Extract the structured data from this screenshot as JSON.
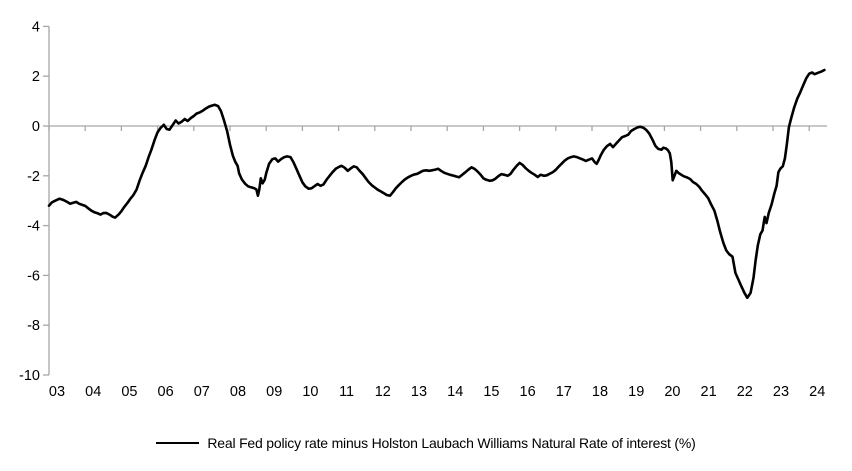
{
  "chart": {
    "legend_label": "Real Fed policy rate minus Holston Laubach Williams Natural Rate of interest (%)"
  },
  "chart_data": {
    "type": "line",
    "title": "",
    "xlabel": "",
    "ylabel": "",
    "ylim": [
      -10,
      4
    ],
    "y_ticks": [
      4,
      2,
      0,
      -2,
      -4,
      -6,
      -8,
      -10
    ],
    "x_tick_labels": [
      "03",
      "04",
      "05",
      "06",
      "07",
      "08",
      "09",
      "10",
      "11",
      "12",
      "13",
      "14",
      "15",
      "16",
      "17",
      "18",
      "19",
      "20",
      "21",
      "22",
      "23",
      "24"
    ],
    "x_range_decimal_years": [
      2003.0,
      2024.5
    ],
    "grid": "zero-baseline-only",
    "legend_position": "bottom-center",
    "axis_color": "#A6A6A6",
    "line_color": "#000000",
    "series": [
      {
        "name": "Real Fed policy rate minus Holston Laubach Williams Natural Rate of interest (%)",
        "x_unit": "decimal-year",
        "points": [
          [
            2003.0,
            -3.2
          ],
          [
            2003.08,
            -3.07
          ],
          [
            2003.17,
            -3.0
          ],
          [
            2003.29,
            -2.92
          ],
          [
            2003.38,
            -2.96
          ],
          [
            2003.5,
            -3.05
          ],
          [
            2003.58,
            -3.12
          ],
          [
            2003.67,
            -3.08
          ],
          [
            2003.75,
            -3.05
          ],
          [
            2003.83,
            -3.12
          ],
          [
            2003.92,
            -3.17
          ],
          [
            2004.0,
            -3.21
          ],
          [
            2004.08,
            -3.3
          ],
          [
            2004.17,
            -3.4
          ],
          [
            2004.25,
            -3.46
          ],
          [
            2004.33,
            -3.5
          ],
          [
            2004.42,
            -3.56
          ],
          [
            2004.5,
            -3.5
          ],
          [
            2004.58,
            -3.49
          ],
          [
            2004.67,
            -3.56
          ],
          [
            2004.75,
            -3.64
          ],
          [
            2004.83,
            -3.68
          ],
          [
            2004.92,
            -3.56
          ],
          [
            2005.0,
            -3.42
          ],
          [
            2005.08,
            -3.25
          ],
          [
            2005.17,
            -3.08
          ],
          [
            2005.25,
            -2.92
          ],
          [
            2005.33,
            -2.78
          ],
          [
            2005.42,
            -2.55
          ],
          [
            2005.5,
            -2.2
          ],
          [
            2005.58,
            -1.9
          ],
          [
            2005.67,
            -1.6
          ],
          [
            2005.75,
            -1.25
          ],
          [
            2005.83,
            -0.95
          ],
          [
            2005.92,
            -0.55
          ],
          [
            2006.0,
            -0.25
          ],
          [
            2006.08,
            -0.08
          ],
          [
            2006.17,
            0.05
          ],
          [
            2006.25,
            -0.12
          ],
          [
            2006.33,
            -0.15
          ],
          [
            2006.42,
            0.05
          ],
          [
            2006.5,
            0.22
          ],
          [
            2006.58,
            0.1
          ],
          [
            2006.67,
            0.18
          ],
          [
            2006.75,
            0.28
          ],
          [
            2006.83,
            0.2
          ],
          [
            2006.92,
            0.32
          ],
          [
            2007.0,
            0.4
          ],
          [
            2007.08,
            0.5
          ],
          [
            2007.17,
            0.55
          ],
          [
            2007.25,
            0.62
          ],
          [
            2007.33,
            0.7
          ],
          [
            2007.42,
            0.78
          ],
          [
            2007.5,
            0.82
          ],
          [
            2007.58,
            0.85
          ],
          [
            2007.67,
            0.8
          ],
          [
            2007.75,
            0.6
          ],
          [
            2007.83,
            0.25
          ],
          [
            2007.92,
            -0.2
          ],
          [
            2008.0,
            -0.75
          ],
          [
            2008.08,
            -1.2
          ],
          [
            2008.15,
            -1.45
          ],
          [
            2008.21,
            -1.6
          ],
          [
            2008.25,
            -1.9
          ],
          [
            2008.33,
            -2.15
          ],
          [
            2008.42,
            -2.32
          ],
          [
            2008.5,
            -2.42
          ],
          [
            2008.58,
            -2.46
          ],
          [
            2008.67,
            -2.5
          ],
          [
            2008.73,
            -2.55
          ],
          [
            2008.77,
            -2.8
          ],
          [
            2008.81,
            -2.55
          ],
          [
            2008.85,
            -2.1
          ],
          [
            2008.9,
            -2.3
          ],
          [
            2008.96,
            -2.15
          ],
          [
            2009.0,
            -1.9
          ],
          [
            2009.08,
            -1.52
          ],
          [
            2009.17,
            -1.33
          ],
          [
            2009.25,
            -1.3
          ],
          [
            2009.33,
            -1.43
          ],
          [
            2009.42,
            -1.32
          ],
          [
            2009.5,
            -1.25
          ],
          [
            2009.58,
            -1.22
          ],
          [
            2009.67,
            -1.25
          ],
          [
            2009.75,
            -1.45
          ],
          [
            2009.83,
            -1.7
          ],
          [
            2009.92,
            -2.0
          ],
          [
            2010.0,
            -2.26
          ],
          [
            2010.08,
            -2.42
          ],
          [
            2010.17,
            -2.52
          ],
          [
            2010.25,
            -2.5
          ],
          [
            2010.33,
            -2.42
          ],
          [
            2010.42,
            -2.33
          ],
          [
            2010.5,
            -2.4
          ],
          [
            2010.58,
            -2.35
          ],
          [
            2010.67,
            -2.15
          ],
          [
            2010.75,
            -2.0
          ],
          [
            2010.83,
            -1.86
          ],
          [
            2010.92,
            -1.72
          ],
          [
            2011.0,
            -1.65
          ],
          [
            2011.08,
            -1.6
          ],
          [
            2011.17,
            -1.68
          ],
          [
            2011.25,
            -1.8
          ],
          [
            2011.33,
            -1.71
          ],
          [
            2011.42,
            -1.62
          ],
          [
            2011.5,
            -1.66
          ],
          [
            2011.58,
            -1.8
          ],
          [
            2011.67,
            -1.94
          ],
          [
            2011.75,
            -2.1
          ],
          [
            2011.83,
            -2.25
          ],
          [
            2011.92,
            -2.38
          ],
          [
            2012.0,
            -2.47
          ],
          [
            2012.08,
            -2.56
          ],
          [
            2012.17,
            -2.63
          ],
          [
            2012.25,
            -2.7
          ],
          [
            2012.33,
            -2.77
          ],
          [
            2012.42,
            -2.8
          ],
          [
            2012.5,
            -2.66
          ],
          [
            2012.58,
            -2.5
          ],
          [
            2012.67,
            -2.36
          ],
          [
            2012.75,
            -2.25
          ],
          [
            2012.83,
            -2.15
          ],
          [
            2012.92,
            -2.06
          ],
          [
            2013.0,
            -2.0
          ],
          [
            2013.08,
            -1.95
          ],
          [
            2013.17,
            -1.92
          ],
          [
            2013.25,
            -1.86
          ],
          [
            2013.33,
            -1.8
          ],
          [
            2013.42,
            -1.78
          ],
          [
            2013.5,
            -1.8
          ],
          [
            2013.58,
            -1.78
          ],
          [
            2013.67,
            -1.75
          ],
          [
            2013.75,
            -1.72
          ],
          [
            2013.83,
            -1.8
          ],
          [
            2013.92,
            -1.88
          ],
          [
            2014.0,
            -1.92
          ],
          [
            2014.08,
            -1.96
          ],
          [
            2014.17,
            -1.99
          ],
          [
            2014.25,
            -2.03
          ],
          [
            2014.33,
            -2.06
          ],
          [
            2014.42,
            -1.95
          ],
          [
            2014.5,
            -1.86
          ],
          [
            2014.58,
            -1.76
          ],
          [
            2014.67,
            -1.66
          ],
          [
            2014.75,
            -1.72
          ],
          [
            2014.83,
            -1.81
          ],
          [
            2014.92,
            -1.95
          ],
          [
            2015.0,
            -2.1
          ],
          [
            2015.08,
            -2.16
          ],
          [
            2015.17,
            -2.2
          ],
          [
            2015.25,
            -2.18
          ],
          [
            2015.33,
            -2.12
          ],
          [
            2015.42,
            -2.01
          ],
          [
            2015.5,
            -1.93
          ],
          [
            2015.58,
            -1.96
          ],
          [
            2015.67,
            -2.0
          ],
          [
            2015.75,
            -1.92
          ],
          [
            2015.83,
            -1.76
          ],
          [
            2015.92,
            -1.6
          ],
          [
            2016.0,
            -1.48
          ],
          [
            2016.08,
            -1.56
          ],
          [
            2016.17,
            -1.7
          ],
          [
            2016.25,
            -1.8
          ],
          [
            2016.33,
            -1.88
          ],
          [
            2016.42,
            -1.96
          ],
          [
            2016.5,
            -2.05
          ],
          [
            2016.58,
            -1.96
          ],
          [
            2016.67,
            -2.0
          ],
          [
            2016.75,
            -1.98
          ],
          [
            2016.83,
            -1.92
          ],
          [
            2016.92,
            -1.85
          ],
          [
            2017.0,
            -1.76
          ],
          [
            2017.08,
            -1.63
          ],
          [
            2017.17,
            -1.5
          ],
          [
            2017.25,
            -1.38
          ],
          [
            2017.33,
            -1.3
          ],
          [
            2017.42,
            -1.25
          ],
          [
            2017.5,
            -1.22
          ],
          [
            2017.58,
            -1.25
          ],
          [
            2017.67,
            -1.3
          ],
          [
            2017.75,
            -1.35
          ],
          [
            2017.83,
            -1.4
          ],
          [
            2017.92,
            -1.35
          ],
          [
            2018.0,
            -1.3
          ],
          [
            2018.08,
            -1.46
          ],
          [
            2018.13,
            -1.52
          ],
          [
            2018.17,
            -1.4
          ],
          [
            2018.25,
            -1.15
          ],
          [
            2018.33,
            -0.95
          ],
          [
            2018.42,
            -0.8
          ],
          [
            2018.5,
            -0.72
          ],
          [
            2018.58,
            -0.85
          ],
          [
            2018.67,
            -0.7
          ],
          [
            2018.75,
            -0.57
          ],
          [
            2018.83,
            -0.45
          ],
          [
            2018.92,
            -0.4
          ],
          [
            2019.0,
            -0.35
          ],
          [
            2019.08,
            -0.2
          ],
          [
            2019.17,
            -0.12
          ],
          [
            2019.25,
            -0.06
          ],
          [
            2019.33,
            -0.03
          ],
          [
            2019.42,
            -0.07
          ],
          [
            2019.5,
            -0.16
          ],
          [
            2019.58,
            -0.3
          ],
          [
            2019.67,
            -0.55
          ],
          [
            2019.75,
            -0.8
          ],
          [
            2019.83,
            -0.92
          ],
          [
            2019.92,
            -0.95
          ],
          [
            2019.97,
            -0.87
          ],
          [
            2020.04,
            -0.9
          ],
          [
            2020.1,
            -0.97
          ],
          [
            2020.15,
            -1.1
          ],
          [
            2020.19,
            -1.45
          ],
          [
            2020.23,
            -2.18
          ],
          [
            2020.29,
            -1.95
          ],
          [
            2020.33,
            -1.8
          ],
          [
            2020.4,
            -1.9
          ],
          [
            2020.46,
            -1.95
          ],
          [
            2020.54,
            -2.02
          ],
          [
            2020.63,
            -2.07
          ],
          [
            2020.71,
            -2.13
          ],
          [
            2020.79,
            -2.25
          ],
          [
            2020.88,
            -2.33
          ],
          [
            2020.96,
            -2.44
          ],
          [
            2021.04,
            -2.6
          ],
          [
            2021.13,
            -2.75
          ],
          [
            2021.21,
            -2.9
          ],
          [
            2021.29,
            -3.15
          ],
          [
            2021.38,
            -3.4
          ],
          [
            2021.46,
            -3.8
          ],
          [
            2021.54,
            -4.25
          ],
          [
            2021.63,
            -4.7
          ],
          [
            2021.71,
            -5.0
          ],
          [
            2021.79,
            -5.15
          ],
          [
            2021.88,
            -5.25
          ],
          [
            2021.96,
            -5.9
          ],
          [
            2022.04,
            -6.15
          ],
          [
            2022.13,
            -6.45
          ],
          [
            2022.21,
            -6.7
          ],
          [
            2022.29,
            -6.9
          ],
          [
            2022.38,
            -6.7
          ],
          [
            2022.46,
            -6.1
          ],
          [
            2022.52,
            -5.4
          ],
          [
            2022.58,
            -4.8
          ],
          [
            2022.65,
            -4.35
          ],
          [
            2022.71,
            -4.2
          ],
          [
            2022.77,
            -3.65
          ],
          [
            2022.82,
            -3.9
          ],
          [
            2022.88,
            -3.5
          ],
          [
            2022.96,
            -3.15
          ],
          [
            2023.04,
            -2.7
          ],
          [
            2023.1,
            -2.4
          ],
          [
            2023.15,
            -1.85
          ],
          [
            2023.21,
            -1.7
          ],
          [
            2023.27,
            -1.62
          ],
          [
            2023.33,
            -1.3
          ],
          [
            2023.38,
            -0.75
          ],
          [
            2023.44,
            -0.05
          ],
          [
            2023.5,
            0.3
          ],
          [
            2023.58,
            0.72
          ],
          [
            2023.67,
            1.1
          ],
          [
            2023.75,
            1.35
          ],
          [
            2023.83,
            1.62
          ],
          [
            2023.92,
            1.92
          ],
          [
            2024.0,
            2.1
          ],
          [
            2024.08,
            2.15
          ],
          [
            2024.15,
            2.08
          ],
          [
            2024.25,
            2.14
          ],
          [
            2024.33,
            2.18
          ],
          [
            2024.42,
            2.25
          ]
        ]
      }
    ]
  }
}
